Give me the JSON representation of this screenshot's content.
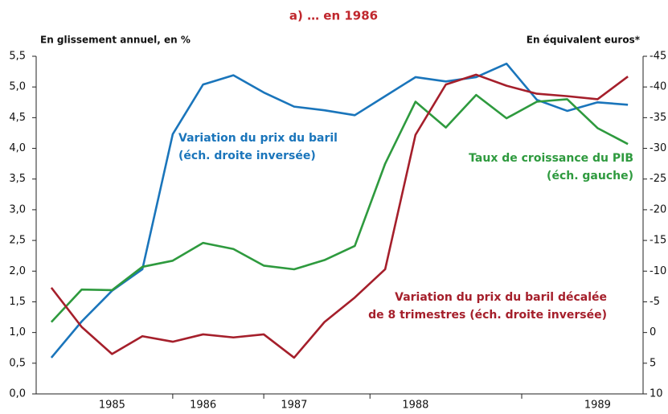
{
  "chart_data": {
    "type": "line",
    "title": "a)  … en 1986",
    "y_label": "En glissement annuel, en %",
    "y2_label": "En équivalent euros*",
    "categories": [
      null,
      null,
      "1985",
      null,
      null,
      "1986",
      null,
      null,
      "1987",
      null,
      null,
      null,
      "1988",
      null,
      null,
      null,
      null,
      null,
      "1989",
      null
    ],
    "series": [
      {
        "name": "Variation du prix du baril",
        "color": "#1a75bb",
        "axis": "y2",
        "values": [
          4.1,
          -1.8,
          -6.8,
          -10.3,
          -32.3,
          -40.4,
          -41.9,
          -39.1,
          -36.8,
          -36.2,
          -35.4,
          -38.5,
          -41.6,
          -40.9,
          -41.6,
          -43.8,
          -37.9,
          -36.1,
          -37.5,
          -37.1
        ]
      },
      {
        "name": "Taux de croissance du PIB",
        "color": "#2e9a3e",
        "values": [
          1.17,
          1.7,
          1.69,
          2.07,
          2.17,
          2.46,
          2.36,
          2.09,
          2.03,
          2.18,
          2.41,
          3.75,
          4.76,
          4.34,
          4.87,
          4.49,
          4.76,
          4.8,
          4.33,
          4.07
        ]
      },
      {
        "name": "Variation du prix du baril décalée de 8 trimestres",
        "color": "#a51f2b",
        "axis": "y2",
        "values": [
          -7.3,
          -0.9,
          3.5,
          0.6,
          1.5,
          0.3,
          0.8,
          0.3,
          4.1,
          -1.7,
          -5.7,
          -10.3,
          -32.2,
          -40.4,
          -42.0,
          -40.2,
          -38.9,
          -38.5,
          -38.0,
          -41.7
        ]
      }
    ],
    "annotations": [
      {
        "lines": [
          "Variation du prix du baril",
          "(éch. droite inversée)"
        ],
        "color": "#1a75bb"
      },
      {
        "lines": [
          "Taux de croissance du PIB",
          "(éch. gauche)"
        ],
        "color": "#2e9a3e"
      },
      {
        "lines": [
          "Variation du prix du baril décalée",
          "de 8 trimestres (éch. droite inversée)"
        ],
        "color": "#a51f2b"
      }
    ],
    "ylim": [
      0,
      5.5
    ],
    "yticks": [
      {
        "value": 0,
        "label": "0,0"
      },
      {
        "value": 0.5,
        "label": "0,5"
      },
      {
        "value": 1,
        "label": "1,0"
      },
      {
        "value": 1.5,
        "label": "1,5"
      },
      {
        "value": 2,
        "label": "2,0"
      },
      {
        "value": 2.5,
        "label": "2,5"
      },
      {
        "value": 3,
        "label": "3,0"
      },
      {
        "value": 3.5,
        "label": "3,5"
      },
      {
        "value": 4,
        "label": "4,0"
      },
      {
        "value": 4.5,
        "label": "4,5"
      },
      {
        "value": 5,
        "label": "5,0"
      },
      {
        "value": 5.5,
        "label": "5,5"
      }
    ],
    "y2lim": [
      10,
      -45
    ],
    "y2ticks": [
      10,
      5,
      0,
      -5,
      -10,
      -15,
      -20,
      -25,
      -30,
      -35,
      -40,
      -45
    ]
  }
}
